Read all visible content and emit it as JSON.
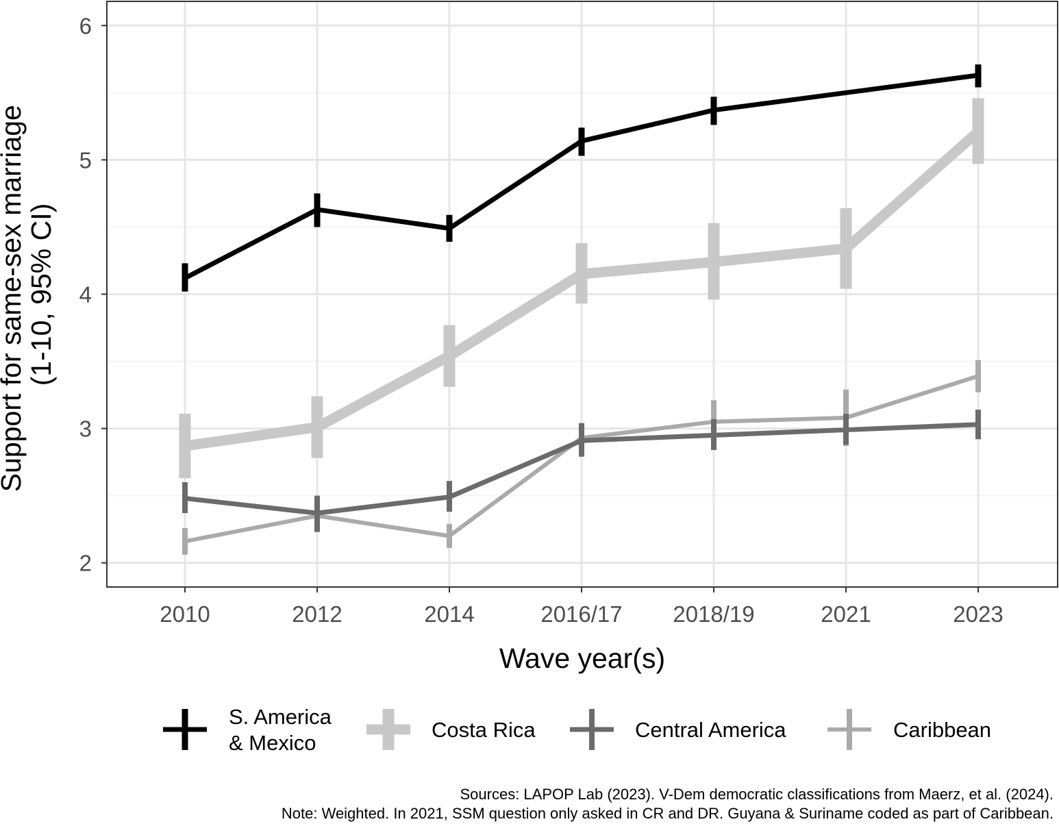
{
  "chart_data": {
    "type": "line",
    "categories": [
      "2010",
      "2012",
      "2014",
      "2016/17",
      "2018/19",
      "2021",
      "2023"
    ],
    "xlabel": "Wave year(s)",
    "ylabel_lines": [
      "Support for same-sex marriage",
      "(1-10, 95% CI)"
    ],
    "ylim": [
      1.82,
      6.18
    ],
    "yticks": [
      2,
      3,
      4,
      5,
      6
    ],
    "grid": true,
    "legend_position": "bottom",
    "series": [
      {
        "name_lines": [
          "S. America",
          "& Mexico"
        ],
        "color": "#000000",
        "points": [
          {
            "x": "2010",
            "y": 4.12,
            "lo": 4.02,
            "hi": 4.23
          },
          {
            "x": "2012",
            "y": 4.63,
            "lo": 4.5,
            "hi": 4.75
          },
          {
            "x": "2014",
            "y": 4.49,
            "lo": 4.39,
            "hi": 4.59
          },
          {
            "x": "2016/17",
            "y": 5.14,
            "lo": 5.03,
            "hi": 5.24
          },
          {
            "x": "2018/19",
            "y": 5.37,
            "lo": 5.26,
            "hi": 5.47
          },
          {
            "x": "2021",
            "y": null
          },
          {
            "x": "2023",
            "y": 5.63,
            "lo": 5.54,
            "hi": 5.71
          }
        ]
      },
      {
        "name_lines": [
          "Costa Rica"
        ],
        "color": "#c8c8c8",
        "points": [
          {
            "x": "2010",
            "y": 2.87,
            "lo": 2.63,
            "hi": 3.11
          },
          {
            "x": "2012",
            "y": 3.01,
            "lo": 2.78,
            "hi": 3.24
          },
          {
            "x": "2014",
            "y": 3.54,
            "lo": 3.31,
            "hi": 3.77
          },
          {
            "x": "2016/17",
            "y": 4.15,
            "lo": 3.93,
            "hi": 4.38
          },
          {
            "x": "2018/19",
            "y": 4.24,
            "lo": 3.96,
            "hi": 4.53
          },
          {
            "x": "2021",
            "y": 4.34,
            "lo": 4.04,
            "hi": 4.64
          },
          {
            "x": "2023",
            "y": 5.21,
            "lo": 4.97,
            "hi": 5.46
          }
        ]
      },
      {
        "name_lines": [
          "Central America"
        ],
        "color": "#6b6b6b",
        "points": [
          {
            "x": "2010",
            "y": 2.48,
            "lo": 2.37,
            "hi": 2.6
          },
          {
            "x": "2012",
            "y": 2.37,
            "lo": 2.23,
            "hi": 2.5
          },
          {
            "x": "2014",
            "y": 2.49,
            "lo": 2.38,
            "hi": 2.61
          },
          {
            "x": "2016/17",
            "y": 2.91,
            "lo": 2.79,
            "hi": 3.04
          },
          {
            "x": "2018/19",
            "y": 2.95,
            "lo": 2.84,
            "hi": 3.07
          },
          {
            "x": "2021",
            "y": 2.99,
            "lo": 2.88,
            "hi": 3.11
          },
          {
            "x": "2023",
            "y": 3.03,
            "lo": 2.92,
            "hi": 3.14
          }
        ]
      },
      {
        "name_lines": [
          "Caribbean"
        ],
        "color": "#aaaaaa",
        "points": [
          {
            "x": "2010",
            "y": 2.16,
            "lo": 2.06,
            "hi": 2.26
          },
          {
            "x": "2012",
            "y": 2.35,
            "lo": 2.26,
            "hi": 2.46
          },
          {
            "x": "2014",
            "y": 2.2,
            "lo": 2.11,
            "hi": 2.29
          },
          {
            "x": "2016/17",
            "y": 2.93,
            "lo": 2.82,
            "hi": 3.04
          },
          {
            "x": "2018/19",
            "y": 3.05,
            "lo": 2.91,
            "hi": 3.21
          },
          {
            "x": "2021",
            "y": 3.08,
            "lo": 2.87,
            "hi": 3.29
          },
          {
            "x": "2023",
            "y": 3.39,
            "lo": 3.27,
            "hi": 3.51
          }
        ]
      }
    ]
  },
  "captions": {
    "sources": "Sources: LAPOP Lab (2023). V-Dem democratic classifications from Maerz, et al. (2024).",
    "note": "Note: Weighted. In 2021, SSM question only asked in CR and DR. Guyana & Suriname coded as part of Caribbean."
  }
}
